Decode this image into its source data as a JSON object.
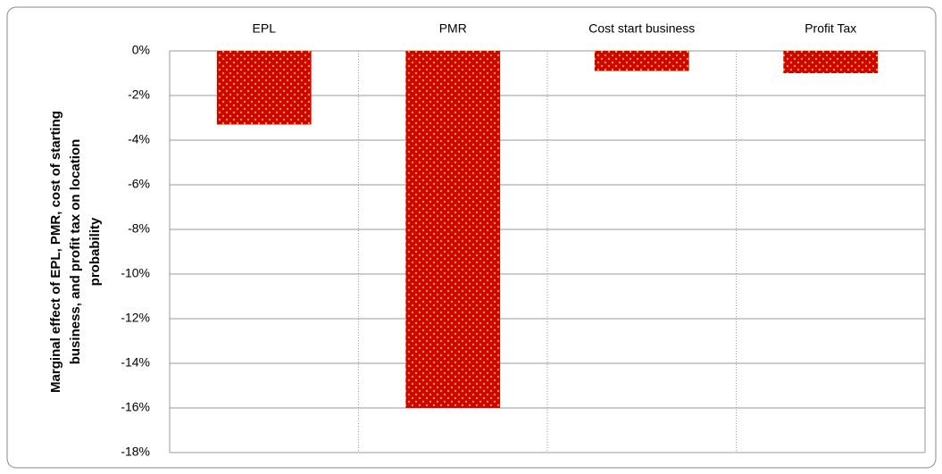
{
  "chart_data": {
    "type": "bar",
    "ylabel": [
      "Marginal effect of EPL, PMR, cost of starting",
      "business, and profit  tax on  location",
      "probability"
    ],
    "categories": [
      "EPL",
      "PMR",
      "Cost start business",
      "Profit Tax"
    ],
    "values": [
      -3.3,
      -16.0,
      -0.9,
      -1.0
    ],
    "color": "#d40000",
    "ylim": [
      0,
      -18
    ],
    "yticks": [
      0,
      {
        "value": -2,
        "label": "-2%"
      },
      {
        "value": -4,
        "label": "-4%"
      },
      {
        "value": -6,
        "label": "-6%"
      },
      {
        "value": -8,
        "label": "-8%"
      },
      {
        "value": -10,
        "label": "-10%"
      },
      {
        "value": -12,
        "label": "-12%"
      },
      {
        "value": -14,
        "label": "-14%"
      },
      {
        "value": -16,
        "label": "-16%"
      },
      {
        "value": -18,
        "label": "-18%"
      }
    ],
    "ytick_zero_label": "0%",
    "grid": true
  }
}
